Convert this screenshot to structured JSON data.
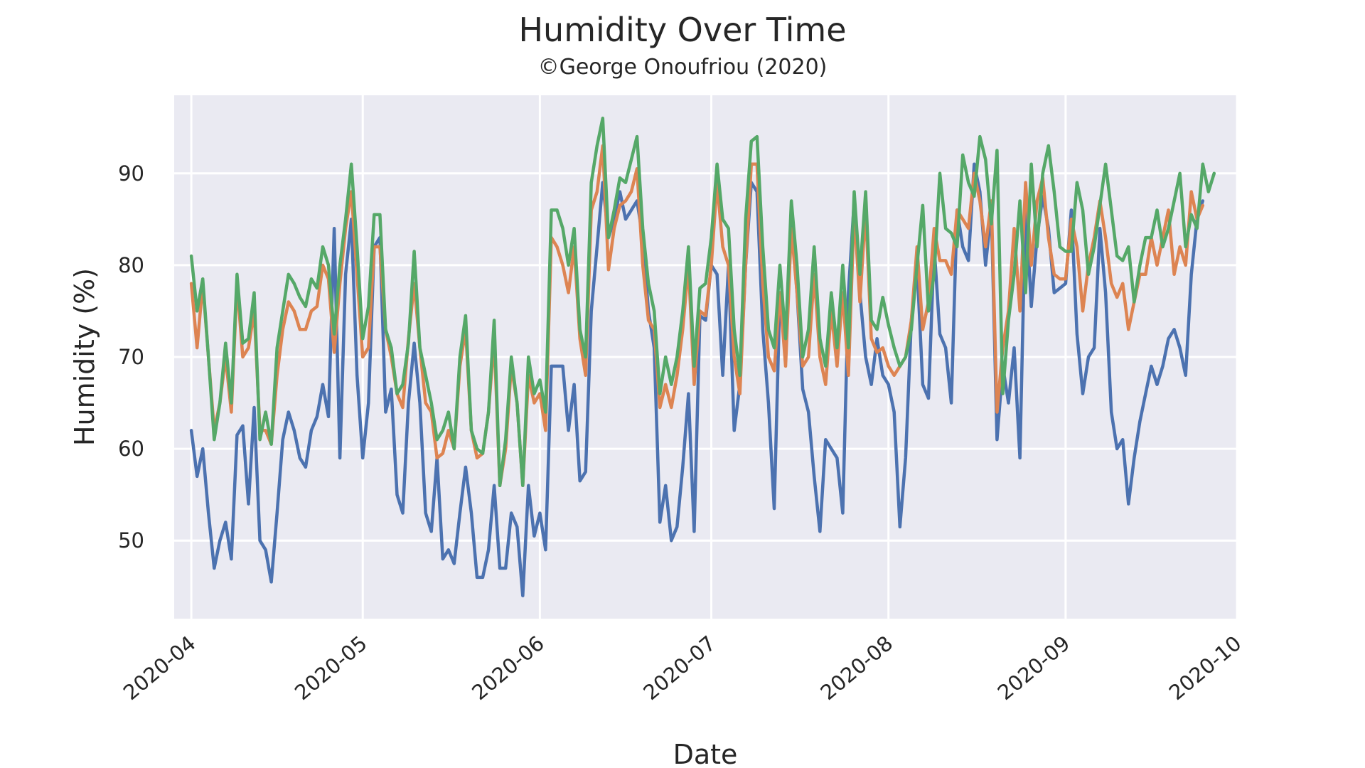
{
  "chart_data": {
    "type": "line",
    "title": "Humidity Over Time",
    "subtitle": "©George Onoufriou (2020)",
    "xlabel": "Date",
    "ylabel": "Humidity (%)",
    "xlim": [
      "2020-03-29",
      "2020-10-01"
    ],
    "ylim": [
      41.5,
      98.5
    ],
    "grid": true,
    "legend": "none",
    "x_ticks": [
      "2020-04",
      "2020-05",
      "2020-06",
      "2020-07",
      "2020-08",
      "2020-09",
      "2020-10"
    ],
    "y_ticks": [
      50,
      60,
      70,
      80,
      90
    ],
    "colors": [
      "#4c72b0",
      "#dd8452",
      "#55a868"
    ],
    "background": "#eaeaf2",
    "start_date": "2020-04-01",
    "series": [
      {
        "values": [
          62,
          57,
          60,
          53,
          47,
          50,
          52,
          48,
          61.5,
          62.5,
          54,
          64.5,
          50,
          49,
          45.5,
          53,
          61,
          64,
          62,
          59,
          58,
          62,
          63.5,
          67,
          63.5,
          84,
          59,
          79,
          85,
          68,
          59,
          65,
          82,
          83,
          64,
          66.5,
          55,
          53,
          65,
          71.5,
          65,
          53,
          51,
          59,
          48,
          49,
          47.5,
          53,
          58,
          53,
          46,
          46,
          49,
          56,
          47,
          47,
          53,
          51.5,
          44,
          56,
          50.5,
          53,
          49,
          69,
          69,
          69,
          62,
          67,
          56.5,
          57.5,
          75,
          82,
          89,
          83,
          85,
          88,
          85,
          86,
          87,
          83,
          75,
          71,
          52,
          56,
          50,
          51.5,
          58,
          66,
          51,
          74.5,
          74,
          80,
          79,
          68,
          80,
          62,
          67,
          80,
          89,
          88,
          73,
          65,
          53.5,
          77,
          72,
          85,
          77,
          66.5,
          64,
          57,
          51,
          61,
          60,
          59,
          53,
          77,
          87,
          77,
          70,
          67,
          72,
          68,
          67,
          64,
          51.5,
          59,
          74,
          80,
          67,
          65.5,
          82,
          72.5,
          71,
          65,
          86,
          82,
          80.5,
          91,
          88,
          80,
          86,
          61,
          69,
          65,
          71,
          59,
          87,
          75.5,
          83,
          87.5,
          84,
          77,
          77.5,
          78,
          86,
          72.5,
          66,
          70,
          71,
          84,
          77,
          64,
          60,
          61,
          54,
          59,
          63,
          66,
          69,
          67,
          69,
          72,
          73,
          71,
          68,
          79,
          85,
          87
        ]
      },
      {
        "values": [
          78,
          71,
          78,
          70,
          62,
          65,
          70,
          64,
          78,
          70,
          71,
          75,
          62,
          62,
          60.5,
          68,
          73,
          76,
          75,
          73,
          73,
          75,
          75.5,
          80,
          78.5,
          70.5,
          78,
          84,
          88,
          79,
          70,
          71,
          82,
          82,
          73,
          70,
          66,
          64.5,
          72,
          78,
          71,
          65,
          64,
          59,
          59.5,
          62,
          60,
          69,
          73,
          62,
          59,
          59.5,
          64,
          72,
          56,
          60,
          69,
          65,
          56,
          68,
          65,
          66,
          62,
          83,
          82,
          80,
          77,
          82,
          72,
          68,
          86,
          88,
          93,
          79.5,
          84,
          86.5,
          87,
          88,
          90.5,
          80,
          74,
          73,
          64.5,
          67,
          64.5,
          68,
          73,
          80,
          67,
          75,
          74.5,
          80,
          89,
          82,
          80,
          70,
          66,
          80,
          91,
          91,
          78,
          70,
          68.5,
          77,
          69,
          84,
          77,
          69,
          70,
          79,
          70,
          67,
          75,
          69,
          77,
          68,
          86,
          76,
          86,
          72,
          70.5,
          71,
          69,
          68,
          69,
          70,
          74,
          82,
          73,
          76,
          84,
          80.5,
          80.5,
          79,
          86,
          85,
          84,
          90,
          87,
          82,
          87,
          64,
          71,
          75,
          84,
          75,
          89,
          80,
          87,
          89.5,
          83,
          79,
          78.5,
          78.5,
          85,
          82,
          75,
          80,
          83,
          87,
          83,
          78,
          76.5,
          78,
          73,
          76,
          79,
          79,
          83,
          80,
          83,
          86,
          79,
          82,
          80,
          88,
          85,
          86.5
        ]
      },
      {
        "values": [
          81,
          75,
          78.5,
          70,
          61,
          65,
          71.5,
          65,
          79,
          71.5,
          72,
          77,
          61,
          64,
          60.5,
          71,
          75,
          79,
          78,
          76.5,
          75.5,
          78.5,
          77.5,
          82,
          80,
          72.5,
          80,
          85,
          91,
          82,
          72,
          75.5,
          85.5,
          85.5,
          73,
          71,
          66,
          67,
          71.5,
          81.5,
          71,
          68,
          65,
          61,
          62,
          64,
          60,
          70,
          74.5,
          62,
          60,
          59.5,
          64,
          74,
          56,
          61,
          70,
          65,
          56,
          70,
          66,
          67.5,
          64,
          86,
          86,
          84,
          80,
          84,
          73,
          70,
          89,
          93,
          96,
          83,
          86,
          89.5,
          89,
          91.5,
          94,
          84,
          78,
          75,
          66,
          70,
          67,
          70,
          75,
          82,
          69,
          77.5,
          78,
          83,
          91,
          85,
          84,
          73,
          68,
          85,
          93.5,
          94,
          82,
          73,
          71,
          80,
          72,
          87,
          80,
          70,
          73,
          82,
          72,
          69,
          77,
          71,
          80,
          71,
          88,
          79,
          88,
          74,
          73,
          76.5,
          73.5,
          71,
          69,
          70,
          73,
          80,
          86.5,
          75,
          79,
          90,
          84,
          83.5,
          82,
          92,
          89,
          87.5,
          94,
          91.5,
          84.5,
          92.5,
          66,
          74,
          79,
          87,
          77,
          91,
          82,
          90,
          93,
          88,
          82,
          81.5,
          81.5,
          89,
          86,
          79,
          82,
          86.5,
          91,
          86,
          81,
          80.5,
          82,
          76,
          80,
          83,
          83,
          86,
          82,
          84,
          87,
          90,
          82,
          85.5,
          84,
          91,
          88,
          90
        ]
      }
    ]
  }
}
